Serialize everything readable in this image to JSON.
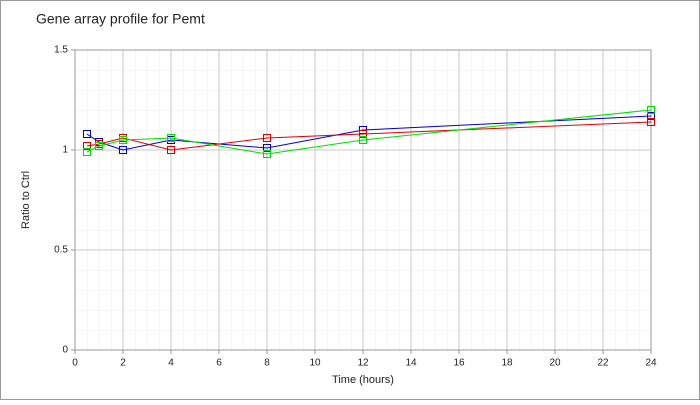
{
  "chart_data": {
    "type": "line",
    "title": "Gene array profile for Pemt",
    "x_label": "Time (hours)",
    "y_label": "Ratio to Ctrl",
    "x": [
      0.5,
      1,
      2,
      4,
      8,
      12,
      24
    ],
    "series": [
      {
        "color": "#0000cc",
        "values": [
          1.08,
          1.04,
          1.0,
          1.05,
          1.01,
          1.1,
          1.17
        ]
      },
      {
        "color": "#dd0000",
        "values": [
          1.02,
          1.03,
          1.06,
          1.0,
          1.06,
          1.08,
          1.14
        ]
      },
      {
        "color": "#00dd00",
        "values": [
          0.99,
          1.02,
          1.05,
          1.06,
          0.98,
          1.05,
          1.2
        ]
      }
    ],
    "xlim": [
      0,
      24
    ],
    "xticks": [
      0,
      2,
      4,
      6,
      8,
      10,
      12,
      14,
      16,
      18,
      20,
      22,
      24
    ],
    "ylim": [
      0,
      1.5
    ],
    "yticks": [
      0,
      0.5,
      1,
      1.5
    ],
    "grid": true
  }
}
